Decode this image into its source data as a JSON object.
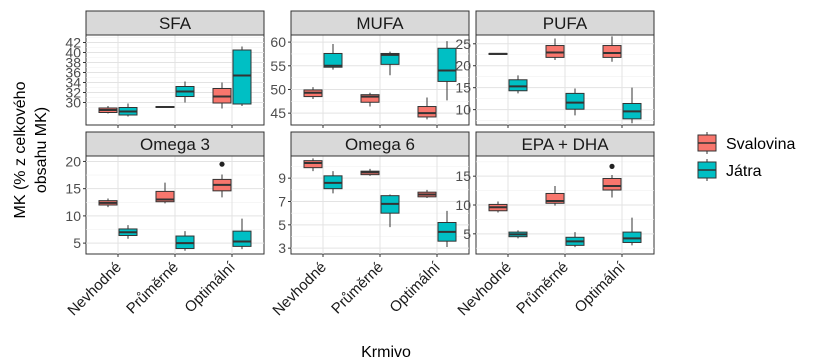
{
  "chart_data": {
    "type": "boxplot",
    "xlabel": "Krmivo",
    "ylabel": "MK (% z celkového obsahu MK)",
    "categories": [
      "Nevhodné",
      "Průměrné",
      "Optimální"
    ],
    "series": [
      {
        "name": "Svalovina",
        "color": "#F8766D"
      },
      {
        "name": "Játra",
        "color": "#00BFC4"
      }
    ],
    "legend": {
      "position": "right"
    },
    "grid": true,
    "panels": [
      {
        "title": "SFA",
        "yticks": [
          30,
          32,
          34,
          36,
          38,
          40,
          42
        ],
        "ylim": [
          25.5,
          43.5
        ],
        "boxes": [
          {
            "category": "Nevhodné",
            "series": "Svalovina",
            "min": 27.8,
            "q1": 28.0,
            "median": 28.5,
            "q3": 28.9,
            "max": 29.3
          },
          {
            "category": "Nevhodné",
            "series": "Játra",
            "min": 27.2,
            "q1": 27.5,
            "median": 28.2,
            "q3": 29.0,
            "max": 29.8
          },
          {
            "category": "Průměrné",
            "series": "Svalovina",
            "min": 28.9,
            "q1": 29.0,
            "median": 29.1,
            "q3": 29.2,
            "max": 29.3
          },
          {
            "category": "Průměrné",
            "series": "Játra",
            "min": 30.0,
            "q1": 31.2,
            "median": 32.2,
            "q3": 33.2,
            "max": 34.2
          },
          {
            "category": "Optimální",
            "series": "Svalovina",
            "min": 28.8,
            "q1": 29.9,
            "median": 31.2,
            "q3": 32.8,
            "max": 34.0
          },
          {
            "category": "Optimální",
            "series": "Játra",
            "min": 29.3,
            "q1": 29.7,
            "median": 35.4,
            "q3": 40.5,
            "max": 41.2
          }
        ]
      },
      {
        "title": "MUFA",
        "yticks": [
          45,
          50,
          55,
          60
        ],
        "ylim": [
          42.5,
          61.5
        ],
        "boxes": [
          {
            "category": "Nevhodné",
            "series": "Svalovina",
            "min": 48.0,
            "q1": 48.5,
            "median": 49.3,
            "q3": 49.9,
            "max": 50.5
          },
          {
            "category": "Nevhodné",
            "series": "Játra",
            "min": 54.2,
            "q1": 54.7,
            "median": 55.0,
            "q3": 57.6,
            "max": 59.6
          },
          {
            "category": "Průměrné",
            "series": "Svalovina",
            "min": 46.4,
            "q1": 47.3,
            "median": 48.5,
            "q3": 48.9,
            "max": 49.3
          },
          {
            "category": "Průměrné",
            "series": "Játra",
            "min": 53.0,
            "q1": 55.3,
            "median": 57.3,
            "q3": 57.6,
            "max": 58.0
          },
          {
            "category": "Optimální",
            "series": "Svalovina",
            "min": 43.7,
            "q1": 44.2,
            "median": 45.0,
            "q3": 46.4,
            "max": 48.3
          },
          {
            "category": "Optimální",
            "series": "Játra",
            "min": 47.7,
            "q1": 51.7,
            "median": 54.0,
            "q3": 58.7,
            "max": 60.2
          }
        ]
      },
      {
        "title": "PUFA",
        "yticks": [
          10,
          15,
          20,
          25
        ],
        "ylim": [
          6.5,
          27.0
        ],
        "boxes": [
          {
            "category": "Nevhodné",
            "series": "Svalovina",
            "min": 22.5,
            "q1": 22.6,
            "median": 22.7,
            "q3": 22.8,
            "max": 22.9
          },
          {
            "category": "Nevhodné",
            "series": "Játra",
            "min": 13.7,
            "q1": 14.3,
            "median": 15.3,
            "q3": 16.8,
            "max": 17.8
          },
          {
            "category": "Průměrné",
            "series": "Svalovina",
            "min": 21.3,
            "q1": 21.9,
            "median": 23.0,
            "q3": 24.6,
            "max": 26.2
          },
          {
            "category": "Průměrné",
            "series": "Játra",
            "min": 8.7,
            "q1": 10.1,
            "median": 11.6,
            "q3": 13.7,
            "max": 14.8
          },
          {
            "category": "Optimální",
            "series": "Svalovina",
            "min": 20.9,
            "q1": 21.9,
            "median": 22.9,
            "q3": 24.6,
            "max": 26.7
          },
          {
            "category": "Optimální",
            "series": "Játra",
            "min": 6.9,
            "q1": 7.9,
            "median": 9.6,
            "q3": 11.4,
            "max": 15.0
          }
        ]
      },
      {
        "title": "Omega 3",
        "yticks": [
          5,
          10,
          15,
          20
        ],
        "ylim": [
          3.0,
          21.0
        ],
        "boxes": [
          {
            "category": "Nevhodné",
            "series": "Svalovina",
            "min": 11.6,
            "q1": 12.0,
            "median": 12.4,
            "q3": 12.8,
            "max": 13.2
          },
          {
            "category": "Nevhodné",
            "series": "Játra",
            "min": 5.8,
            "q1": 6.4,
            "median": 7.0,
            "q3": 7.6,
            "max": 8.3
          },
          {
            "category": "Průměrné",
            "series": "Svalovina",
            "min": 12.3,
            "q1": 12.6,
            "median": 13.0,
            "q3": 14.5,
            "max": 16.1
          },
          {
            "category": "Průměrné",
            "series": "Játra",
            "min": 3.6,
            "q1": 4.0,
            "median": 5.0,
            "q3": 6.3,
            "max": 7.2
          },
          {
            "category": "Optimální",
            "series": "Svalovina",
            "min": 13.4,
            "q1": 14.6,
            "median": 15.7,
            "q3": 16.7,
            "max": 17.6,
            "outliers": [
              19.5
            ]
          },
          {
            "category": "Optimální",
            "series": "Játra",
            "min": 3.9,
            "q1": 4.4,
            "median": 5.3,
            "q3": 7.2,
            "max": 9.5
          }
        ]
      },
      {
        "title": "Omega 6",
        "yticks": [
          3,
          5,
          7,
          9
        ],
        "ylim": [
          2.5,
          10.9
        ],
        "boxes": [
          {
            "category": "Nevhodné",
            "series": "Svalovina",
            "min": 9.6,
            "q1": 9.9,
            "median": 10.3,
            "q3": 10.5,
            "max": 10.7
          },
          {
            "category": "Nevhodné",
            "series": "Játra",
            "min": 7.7,
            "q1": 8.1,
            "median": 8.6,
            "q3": 9.2,
            "max": 9.6
          },
          {
            "category": "Průměrné",
            "series": "Svalovina",
            "min": 9.2,
            "q1": 9.3,
            "median": 9.5,
            "q3": 9.6,
            "max": 9.8
          },
          {
            "category": "Průměrné",
            "series": "Játra",
            "min": 4.8,
            "q1": 6.0,
            "median": 6.8,
            "q3": 7.5,
            "max": 7.6
          },
          {
            "category": "Optimální",
            "series": "Svalovina",
            "min": 7.3,
            "q1": 7.4,
            "median": 7.6,
            "q3": 7.8,
            "max": 8.0
          },
          {
            "category": "Optimální",
            "series": "Játra",
            "min": 3.1,
            "q1": 3.6,
            "median": 4.4,
            "q3": 5.2,
            "max": 6.2
          }
        ]
      },
      {
        "title": "EPA + DHA",
        "yticks": [
          5,
          10,
          15
        ],
        "ylim": [
          1.5,
          18.5
        ],
        "boxes": [
          {
            "category": "Nevhodné",
            "series": "Svalovina",
            "min": 8.7,
            "q1": 9.0,
            "median": 9.6,
            "q3": 10.1,
            "max": 10.6
          },
          {
            "category": "Nevhodné",
            "series": "Játra",
            "min": 4.2,
            "q1": 4.5,
            "median": 4.9,
            "q3": 5.3,
            "max": 5.6
          },
          {
            "category": "Průměrné",
            "series": "Svalovina",
            "min": 9.9,
            "q1": 10.3,
            "median": 10.7,
            "q3": 12.0,
            "max": 13.3
          },
          {
            "category": "Průměrné",
            "series": "Játra",
            "min": 2.7,
            "q1": 3.0,
            "median": 3.7,
            "q3": 4.4,
            "max": 5.3
          },
          {
            "category": "Optimální",
            "series": "Svalovina",
            "min": 11.3,
            "q1": 12.6,
            "median": 13.3,
            "q3": 14.6,
            "max": 15.2,
            "outliers": [
              16.7
            ]
          },
          {
            "category": "Optimální",
            "series": "Játra",
            "min": 3.0,
            "q1": 3.5,
            "median": 4.2,
            "q3": 5.3,
            "max": 7.8
          }
        ]
      }
    ]
  }
}
